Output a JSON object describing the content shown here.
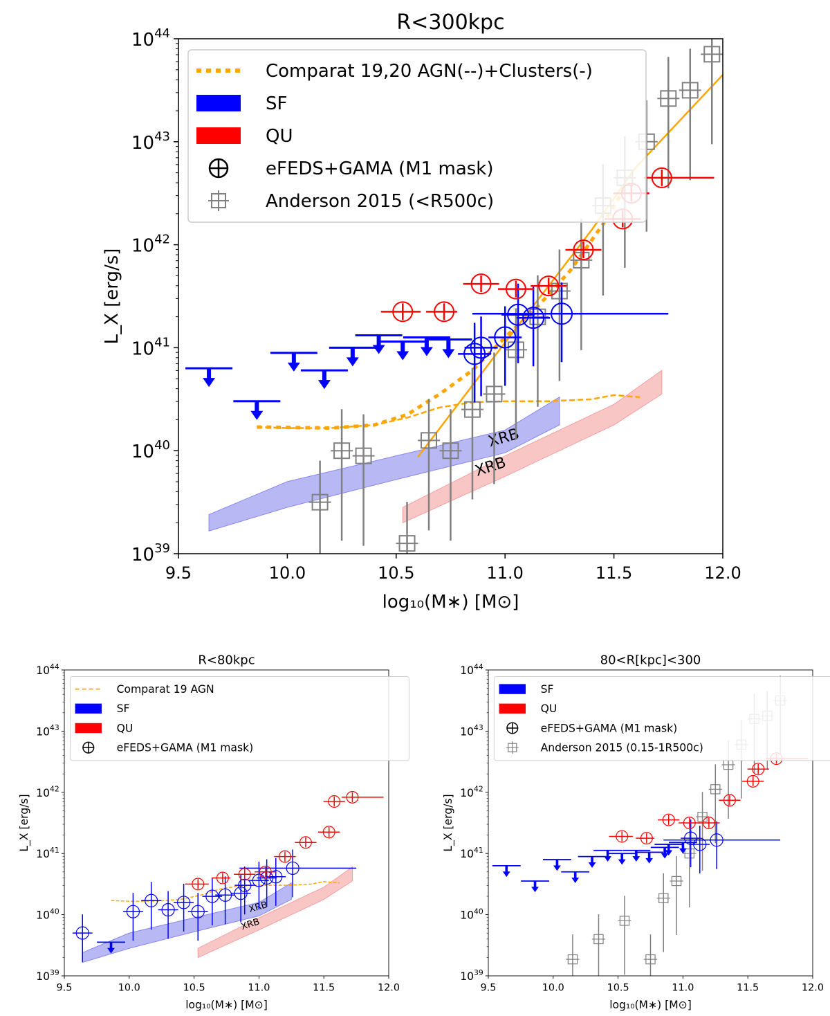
{
  "colors": {
    "sf": "#0000ff",
    "qu": "#ff0000",
    "model": "#ffa500",
    "anderson": "#808080",
    "sf_band": "#8888ee",
    "qu_band": "#f5a0a0"
  },
  "chart_data": [
    {
      "type": "scatter",
      "title": "R<300kpc",
      "xlabel": "log₁₀(M∗) [M⊙]",
      "ylabel": "L_X [erg/s]",
      "xlim": [
        9.5,
        12.0
      ],
      "ylim_log10": [
        39,
        44
      ],
      "xticks": [
        "9.5",
        "10.0",
        "10.5",
        "11.0",
        "11.5",
        "12.0"
      ],
      "yticks": [
        "39",
        "40",
        "41",
        "42",
        "43",
        "44"
      ],
      "legend": [
        "Comparat 19,20 AGN(--)+Clusters(-)",
        "SF",
        "QU",
        "eFEDS+GAMA (M1 mask)",
        "Anderson 2015 (<R500c)"
      ],
      "band_label": "XRB",
      "sf_upper_limits": [
        [
          9.64,
          40.8
        ],
        [
          9.86,
          40.48
        ],
        [
          10.03,
          40.95
        ],
        [
          10.17,
          40.78
        ],
        [
          10.3,
          41.0
        ],
        [
          10.42,
          41.12
        ],
        [
          10.53,
          41.06
        ],
        [
          10.64,
          41.1
        ],
        [
          10.74,
          41.08
        ]
      ],
      "sf_points": [
        [
          10.86,
          40.94
        ],
        [
          10.89,
          41.0
        ],
        [
          11.0,
          41.1
        ],
        [
          11.06,
          41.32
        ],
        [
          11.13,
          41.29
        ],
        [
          11.26,
          41.33
        ]
      ],
      "qu_points": [
        [
          10.53,
          41.35
        ],
        [
          10.72,
          41.35
        ],
        [
          10.89,
          41.62
        ],
        [
          11.05,
          41.57
        ],
        [
          11.2,
          41.6
        ],
        [
          11.36,
          41.95
        ],
        [
          11.54,
          42.25
        ],
        [
          11.58,
          42.5
        ],
        [
          11.72,
          42.65
        ]
      ],
      "anderson_points": [
        [
          10.15,
          39.5
        ],
        [
          10.25,
          40.0
        ],
        [
          10.35,
          39.95
        ],
        [
          10.55,
          39.1
        ],
        [
          10.65,
          40.1
        ],
        [
          10.75,
          40.0
        ],
        [
          10.85,
          40.4
        ],
        [
          10.95,
          40.55
        ],
        [
          11.05,
          40.98
        ],
        [
          11.15,
          41.3
        ],
        [
          11.25,
          41.55
        ],
        [
          11.35,
          41.85
        ],
        [
          11.45,
          42.38
        ],
        [
          11.55,
          42.65
        ],
        [
          11.65,
          43.0
        ],
        [
          11.75,
          43.42
        ],
        [
          11.85,
          43.5
        ],
        [
          11.95,
          43.85
        ]
      ],
      "comparat_agn": [
        [
          9.86,
          40.23
        ],
        [
          10.0,
          40.22
        ],
        [
          10.2,
          40.22
        ],
        [
          10.4,
          40.25
        ],
        [
          10.55,
          40.32
        ],
        [
          10.7,
          40.42
        ],
        [
          10.85,
          40.47
        ],
        [
          11.0,
          40.48
        ],
        [
          11.2,
          40.48
        ],
        [
          11.4,
          40.5
        ],
        [
          11.5,
          40.54
        ],
        [
          11.62,
          40.52
        ]
      ],
      "comparat_total": [
        [
          9.86,
          40.23
        ],
        [
          10.2,
          40.22
        ],
        [
          10.4,
          40.25
        ],
        [
          10.55,
          40.35
        ],
        [
          10.7,
          40.55
        ],
        [
          10.85,
          40.78
        ],
        [
          11.0,
          41.1
        ],
        [
          11.15,
          41.4
        ],
        [
          11.3,
          41.75
        ],
        [
          11.45,
          42.2
        ],
        [
          11.55,
          42.55
        ]
      ],
      "comparat_clusters": [
        [
          10.6,
          39.94
        ],
        [
          11.0,
          41.05
        ],
        [
          11.2,
          41.6
        ],
        [
          11.4,
          42.15
        ],
        [
          11.6,
          42.75
        ],
        [
          12.0,
          43.65
        ]
      ],
      "sf_band_upper": [
        [
          9.64,
          39.38
        ],
        [
          10.0,
          39.7
        ],
        [
          10.5,
          39.95
        ],
        [
          11.0,
          40.2
        ],
        [
          11.25,
          40.52
        ]
      ],
      "sf_band_lower": [
        [
          9.64,
          39.22
        ],
        [
          10.0,
          39.45
        ],
        [
          10.5,
          39.72
        ],
        [
          11.0,
          39.98
        ],
        [
          11.25,
          40.25
        ]
      ],
      "qu_band_upper": [
        [
          10.53,
          39.45
        ],
        [
          11.0,
          39.95
        ],
        [
          11.5,
          40.45
        ],
        [
          11.72,
          40.78
        ]
      ],
      "qu_band_lower": [
        [
          10.53,
          39.3
        ],
        [
          11.0,
          39.75
        ],
        [
          11.5,
          40.25
        ],
        [
          11.72,
          40.55
        ]
      ]
    },
    {
      "type": "scatter",
      "title": "R<80kpc",
      "xlabel": "log₁₀(M∗) [M⊙]",
      "ylabel": "L_X [erg/s]",
      "xlim": [
        9.5,
        12.0
      ],
      "ylim_log10": [
        39,
        44
      ],
      "xticks": [
        "9.5",
        "10.0",
        "10.5",
        "11.0",
        "11.5",
        "12.0"
      ],
      "yticks": [
        "39",
        "40",
        "41",
        "42",
        "43",
        "44"
      ],
      "legend": [
        "Comparat 19 AGN",
        "SF",
        "QU",
        "eFEDS+GAMA (M1 mask)"
      ],
      "band_label": "XRB",
      "sf_upper_limits": [
        [
          9.86,
          39.55
        ]
      ],
      "sf_points": [
        [
          9.64,
          39.7
        ],
        [
          10.03,
          40.05
        ],
        [
          10.17,
          40.23
        ],
        [
          10.3,
          40.08
        ],
        [
          10.42,
          40.2
        ],
        [
          10.53,
          40.05
        ],
        [
          10.64,
          40.3
        ],
        [
          10.74,
          40.32
        ],
        [
          10.86,
          40.35
        ],
        [
          10.89,
          40.48
        ],
        [
          11.0,
          40.56
        ],
        [
          11.06,
          40.6
        ],
        [
          11.13,
          40.62
        ],
        [
          11.26,
          40.76
        ]
      ],
      "qu_points": [
        [
          10.53,
          40.5
        ],
        [
          10.72,
          40.6
        ],
        [
          10.89,
          40.66
        ],
        [
          11.05,
          40.7
        ],
        [
          11.2,
          40.95
        ],
        [
          11.36,
          41.18
        ],
        [
          11.54,
          41.35
        ],
        [
          11.58,
          41.85
        ],
        [
          11.72,
          41.92
        ]
      ],
      "comparat_agn": [
        [
          9.86,
          40.23
        ],
        [
          10.0,
          40.22
        ],
        [
          10.2,
          40.22
        ],
        [
          10.4,
          40.25
        ],
        [
          10.55,
          40.32
        ],
        [
          10.7,
          40.42
        ],
        [
          10.85,
          40.47
        ],
        [
          11.0,
          40.48
        ],
        [
          11.2,
          40.48
        ],
        [
          11.4,
          40.5
        ],
        [
          11.5,
          40.54
        ],
        [
          11.62,
          40.52
        ]
      ],
      "sf_band_upper": [
        [
          9.64,
          39.38
        ],
        [
          10.0,
          39.7
        ],
        [
          10.5,
          39.95
        ],
        [
          11.0,
          40.2
        ],
        [
          11.25,
          40.52
        ]
      ],
      "sf_band_lower": [
        [
          9.64,
          39.22
        ],
        [
          10.0,
          39.45
        ],
        [
          10.5,
          39.72
        ],
        [
          11.0,
          39.98
        ],
        [
          11.25,
          40.25
        ]
      ],
      "qu_band_upper": [
        [
          10.53,
          39.45
        ],
        [
          11.0,
          39.95
        ],
        [
          11.5,
          40.45
        ],
        [
          11.72,
          40.78
        ]
      ],
      "qu_band_lower": [
        [
          10.53,
          39.3
        ],
        [
          11.0,
          39.75
        ],
        [
          11.5,
          40.25
        ],
        [
          11.72,
          40.55
        ]
      ]
    },
    {
      "type": "scatter",
      "title": "80<R[kpc]<300",
      "xlabel": "log₁₀(M∗) [M⊙]",
      "ylabel": "L_X [erg/s]",
      "xlim": [
        9.5,
        12.0
      ],
      "ylim_log10": [
        39,
        44
      ],
      "xticks": [
        "9.5",
        "10.0",
        "10.5",
        "11.0",
        "11.5",
        "12.0"
      ],
      "yticks": [
        "39",
        "40",
        "41",
        "42",
        "43",
        "44"
      ],
      "legend": [
        "SF",
        "QU",
        "eFEDS+GAMA (M1 mask)",
        "Anderson 2015 (0.15-1R500c)"
      ],
      "sf_upper_limits": [
        [
          9.64,
          40.8
        ],
        [
          9.86,
          40.55
        ],
        [
          10.03,
          40.9
        ],
        [
          10.17,
          40.7
        ],
        [
          10.3,
          40.95
        ],
        [
          10.42,
          41.05
        ],
        [
          10.53,
          41.0
        ],
        [
          10.64,
          41.05
        ],
        [
          10.74,
          41.02
        ],
        [
          10.86,
          41.1
        ],
        [
          10.89,
          41.15
        ],
        [
          11.0,
          41.18
        ]
      ],
      "sf_points": [
        [
          11.06,
          41.25
        ],
        [
          11.13,
          41.15
        ],
        [
          11.26,
          41.22
        ]
      ],
      "qu_points": [
        [
          10.53,
          41.28
        ],
        [
          10.72,
          41.25
        ],
        [
          10.89,
          41.55
        ],
        [
          11.05,
          41.5
        ],
        [
          11.2,
          41.5
        ],
        [
          11.36,
          41.87
        ],
        [
          11.54,
          42.18
        ],
        [
          11.58,
          42.38
        ],
        [
          11.72,
          42.55
        ]
      ],
      "anderson_points": [
        [
          10.15,
          39.27
        ],
        [
          10.35,
          39.6
        ],
        [
          10.55,
          39.9
        ],
        [
          10.75,
          39.27
        ],
        [
          10.85,
          40.27
        ],
        [
          10.95,
          40.55
        ],
        [
          11.05,
          41.0
        ],
        [
          11.15,
          41.6
        ],
        [
          11.25,
          42.05
        ],
        [
          11.35,
          42.45
        ],
        [
          11.45,
          42.78
        ],
        [
          11.55,
          43.2
        ],
        [
          11.65,
          43.25
        ],
        [
          11.75,
          43.5
        ]
      ],
      "sf_band_upper": [],
      "sf_band_lower": []
    }
  ]
}
